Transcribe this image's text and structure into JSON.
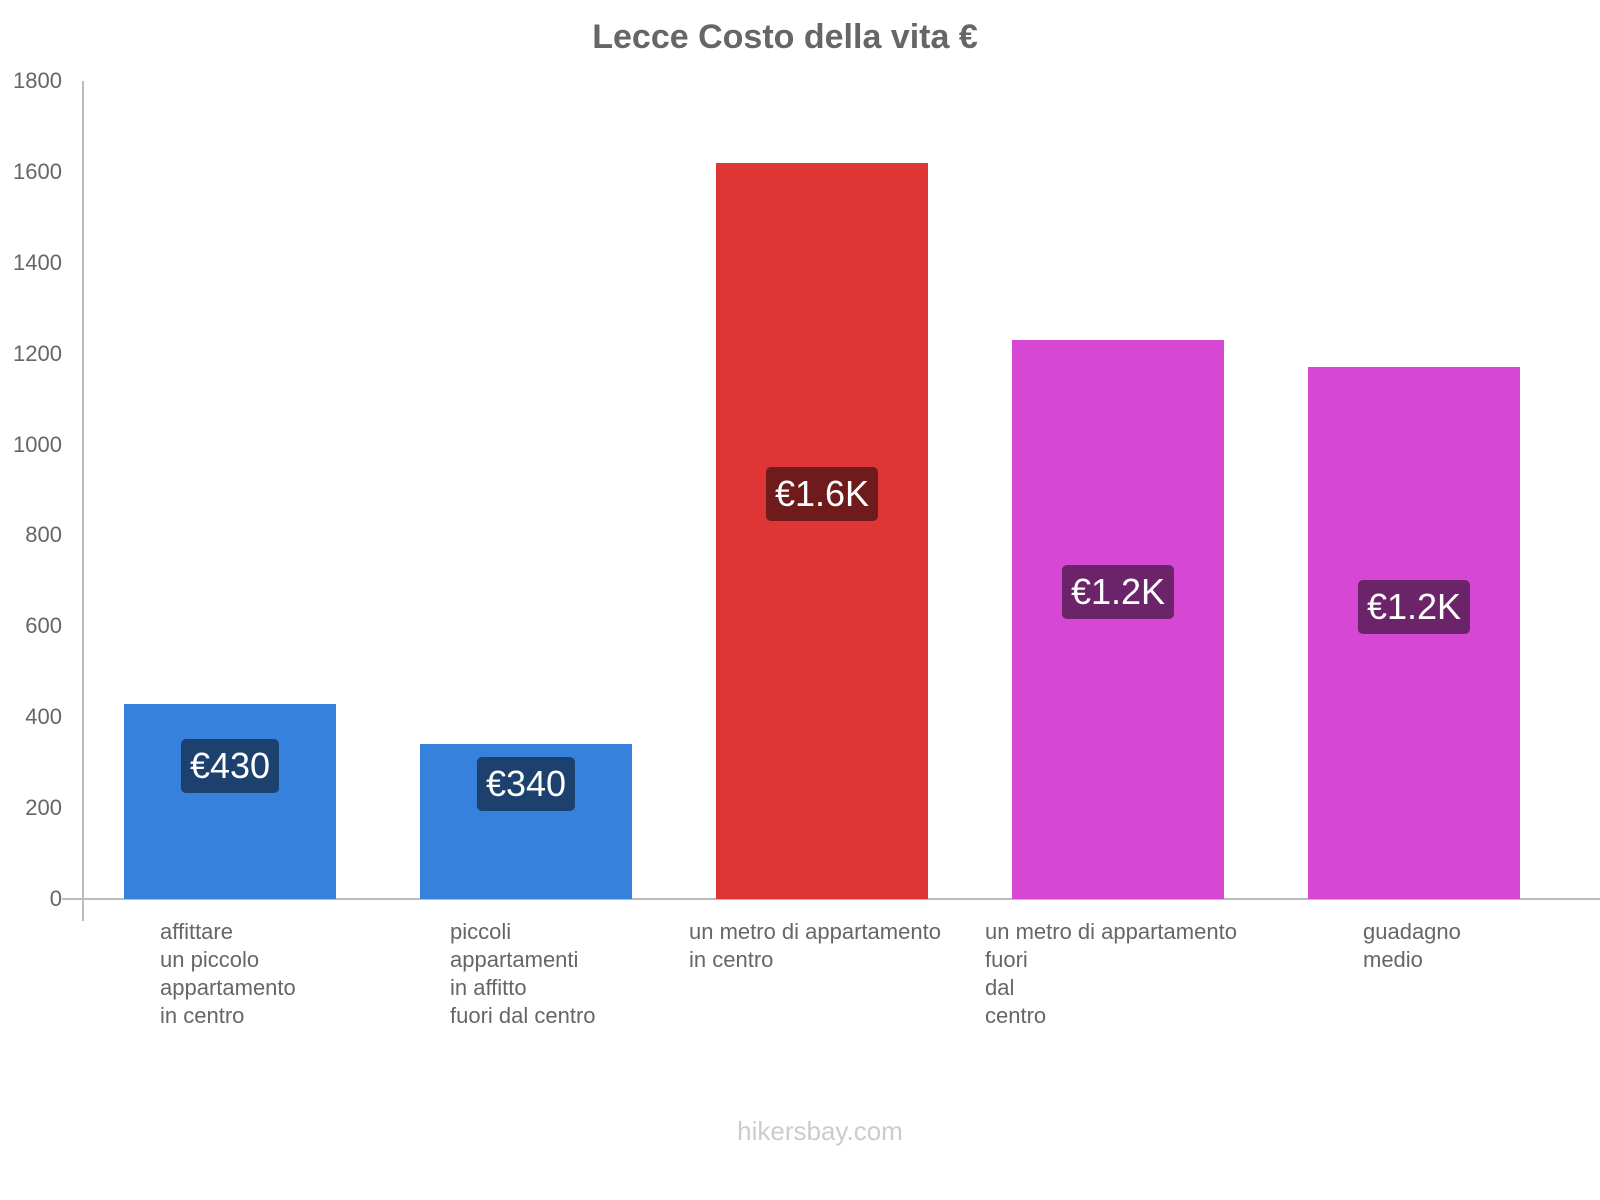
{
  "title": "Lecce Costo della vita €",
  "footer": "hikersbay.com",
  "y_ticks": [
    "1800",
    "1600",
    "1400",
    "1200",
    "1000",
    "800",
    "600",
    "400",
    "200",
    "0"
  ],
  "bars": [
    {
      "label": "affittare\nun piccolo\nappartamento\nin centro",
      "value": 430,
      "badge": "€430",
      "color": "#3581dc",
      "badge_color": "#1d416e"
    },
    {
      "label": "piccoli\nappartamenti\nin affitto\nfuori dal centro",
      "value": 340,
      "badge": "€340",
      "color": "#3581dc",
      "badge_color": "#1d416e"
    },
    {
      "label": "un metro di appartamento\nin centro",
      "value": 1620,
      "badge": "€1.6K",
      "color": "#e03535",
      "badge_color": "#701b1b"
    },
    {
      "label": "un metro di appartamento\nfuori\ndal\ncentro",
      "value": 1230,
      "badge": "€1.2K",
      "color": "#d648d3",
      "badge_color": "#6b246a"
    },
    {
      "label": "guadagno\nmedio",
      "value": 1170,
      "badge": "€1.2K",
      "color": "#d648d3",
      "badge_color": "#6b246a"
    }
  ],
  "chart_data": {
    "type": "bar",
    "title": "Lecce Costo della vita €",
    "categories": [
      "affittare un piccolo appartamento in centro",
      "piccoli appartamenti in affitto fuori dal centro",
      "un metro di appartamento in centro",
      "un metro di appartamento fuori dal centro",
      "guadagno medio"
    ],
    "values": [
      430,
      340,
      1620,
      1230,
      1170
    ],
    "data_labels": [
      "€430",
      "€340",
      "€1.6K",
      "€1.2K",
      "€1.2K"
    ],
    "colors": [
      "#3581dc",
      "#3581dc",
      "#e03535",
      "#d648d3",
      "#d648d3"
    ],
    "xlabel": "",
    "ylabel": "",
    "ylim": [
      0,
      1800
    ],
    "yticks": [
      0,
      200,
      400,
      600,
      800,
      1000,
      1200,
      1400,
      1600,
      1800
    ],
    "grid": false,
    "legend": "none"
  }
}
